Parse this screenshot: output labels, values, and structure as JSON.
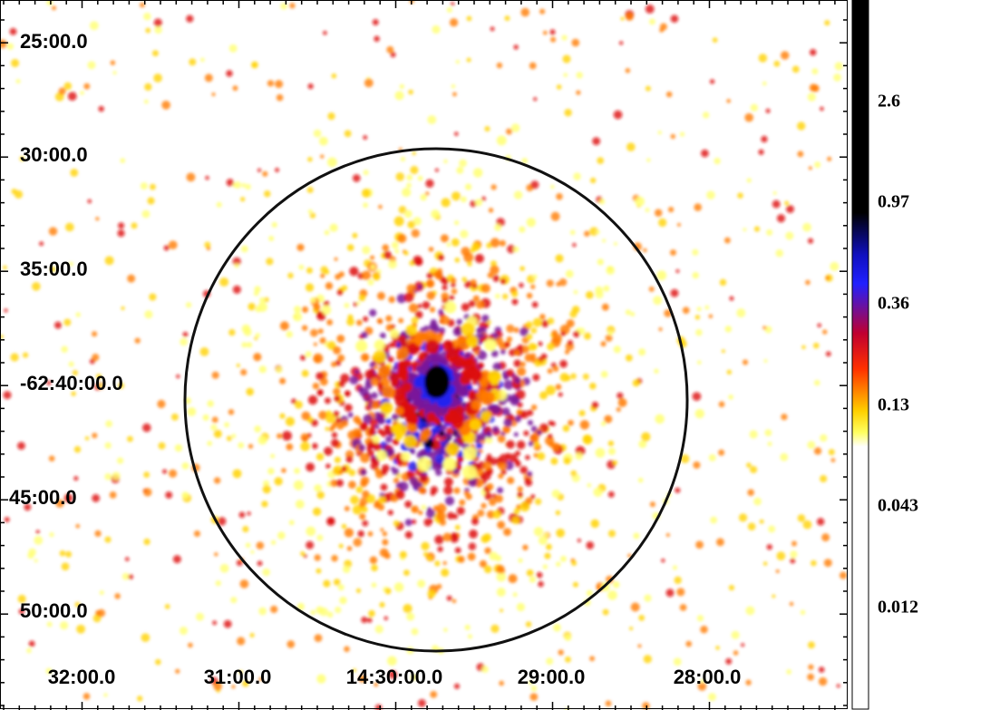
{
  "y_axis_labels": [
    "25:00.0",
    "30:00.0",
    "35:00.0",
    "-62:40:00.0",
    "45:00.0",
    "50:00.0"
  ],
  "x_axis_labels": [
    "32:00.0",
    "31:00.0",
    "14:30:00.0",
    "29:00.0",
    "28:00.0"
  ],
  "colorbar_labels": [
    "2.6",
    "0.97",
    "0.36",
    "0.13",
    "0.043",
    "0.012"
  ]
}
